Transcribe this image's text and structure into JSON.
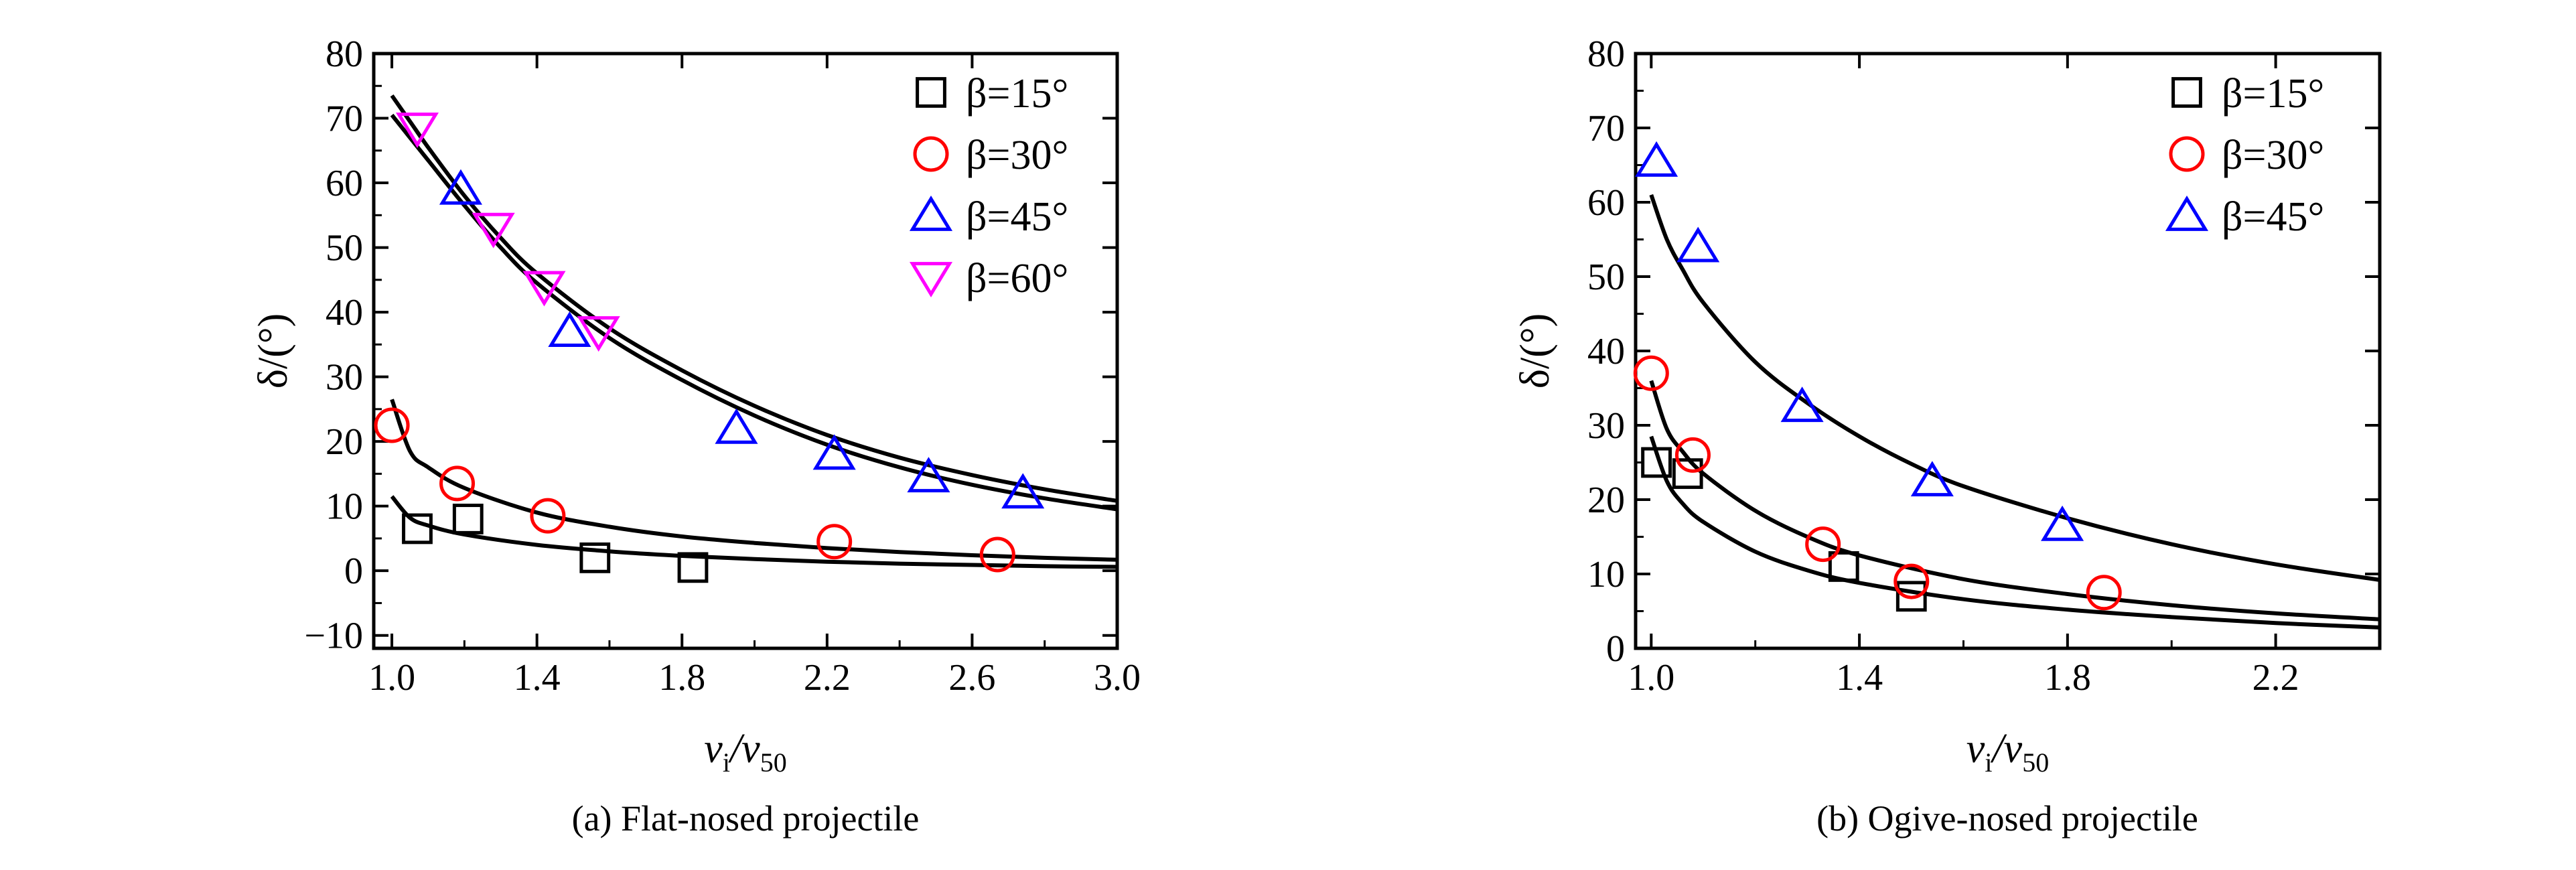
{
  "colors": {
    "axis": "#000000",
    "curve": "#000000",
    "beta15": "#000000",
    "beta30": "#ff0000",
    "beta45": "#0000ff",
    "beta60": "#ff00ff"
  },
  "chart_data": [
    {
      "type": "scatter",
      "caption": "(a) Flat-nosed projectile",
      "xlabel_main": "v",
      "xlabel_sub1": "i",
      "xlabel_mid": "/v",
      "xlabel_sub2": "50",
      "ylabel": "δ/(°)",
      "xlim": [
        0.95,
        3.0
      ],
      "ylim": [
        -12,
        80
      ],
      "xticks": [
        "1.0",
        "1.4",
        "1.8",
        "2.2",
        "2.6",
        "3.0"
      ],
      "yticks": [
        "-10",
        "0",
        "10",
        "20",
        "30",
        "40",
        "50",
        "60",
        "70",
        "80"
      ],
      "grid": false,
      "legend_position": "top-right",
      "series": [
        {
          "name": "β=15°",
          "marker": "square",
          "color": "#000000",
          "x": [
            1.07,
            1.21,
            1.56,
            1.83
          ],
          "y": [
            6.5,
            8,
            2,
            0.5
          ]
        },
        {
          "name": "β=30°",
          "marker": "circle",
          "color": "#ff0000",
          "x": [
            1.0,
            1.18,
            1.43,
            2.22,
            2.67
          ],
          "y": [
            22.5,
            13.5,
            8.5,
            4.5,
            2.5
          ]
        },
        {
          "name": "β=45°",
          "marker": "triangle-up",
          "color": "#0000ff",
          "x": [
            1.19,
            1.49,
            1.95,
            2.22,
            2.48,
            2.74
          ],
          "y": [
            59,
            37,
            22,
            18,
            14.5,
            12
          ]
        },
        {
          "name": "β=60°",
          "marker": "triangle-down",
          "color": "#ff00ff",
          "x": [
            1.07,
            1.28,
            1.42,
            1.57
          ],
          "y": [
            68.5,
            53,
            44,
            37
          ]
        }
      ],
      "fit_curves": [
        {
          "x": [
            1.0,
            1.05,
            1.1,
            1.2,
            1.4,
            1.6,
            1.8,
            2.0,
            2.2,
            2.4,
            2.6,
            2.8,
            3.0
          ],
          "y": [
            11.5,
            8.2,
            7.0,
            5.6,
            4.0,
            3.0,
            2.3,
            1.8,
            1.4,
            1.1,
            0.9,
            0.7,
            0.6
          ]
        },
        {
          "x": [
            1.0,
            1.05,
            1.1,
            1.2,
            1.4,
            1.6,
            1.8,
            2.0,
            2.2,
            2.4,
            2.6,
            2.8,
            3.0
          ],
          "y": [
            26.5,
            18.5,
            16.0,
            12.8,
            9.0,
            6.8,
            5.3,
            4.3,
            3.5,
            2.9,
            2.4,
            2.0,
            1.7
          ]
        },
        {
          "x": [
            1.0,
            1.05,
            1.1,
            1.2,
            1.3,
            1.4,
            1.6,
            1.8,
            2.0,
            2.2,
            2.4,
            2.6,
            2.8,
            3.0
          ],
          "y": [
            73.5,
            69.5,
            65.5,
            58.0,
            51.5,
            46.0,
            37.5,
            31.0,
            25.5,
            21.0,
            17.5,
            14.8,
            12.6,
            10.8
          ]
        },
        {
          "x": [
            1.0,
            1.05,
            1.1,
            1.2,
            1.3,
            1.4,
            1.6,
            1.8,
            2.0,
            2.2,
            2.4,
            2.6,
            2.8,
            3.0
          ],
          "y": [
            70.5,
            67.0,
            63.5,
            56.5,
            50.0,
            44.5,
            36.0,
            29.5,
            24.0,
            19.5,
            16.0,
            13.3,
            11.2,
            9.5
          ]
        }
      ]
    },
    {
      "type": "scatter",
      "caption": "(b) Ogive-nosed projectile",
      "xlabel_main": "v",
      "xlabel_sub1": "i",
      "xlabel_mid": "/v",
      "xlabel_sub2": "50",
      "ylabel": "δ/(°)",
      "xlim": [
        0.97,
        2.4
      ],
      "ylim": [
        0,
        80
      ],
      "xticks": [
        "1.0",
        "1.4",
        "1.8",
        "2.2"
      ],
      "yticks": [
        "0",
        "10",
        "20",
        "30",
        "40",
        "50",
        "60",
        "70",
        "80"
      ],
      "grid": false,
      "legend_position": "top-right",
      "series": [
        {
          "name": "β=15°",
          "marker": "square",
          "color": "#000000",
          "x": [
            1.01,
            1.07,
            1.37,
            1.5
          ],
          "y": [
            25,
            23.5,
            11,
            7
          ]
        },
        {
          "name": "β=30°",
          "marker": "circle",
          "color": "#ff0000",
          "x": [
            1.0,
            1.08,
            1.33,
            1.5,
            1.87
          ],
          "y": [
            37,
            26,
            14,
            9,
            7.5
          ]
        },
        {
          "name": "β=45°",
          "marker": "triangle-up",
          "color": "#0000ff",
          "x": [
            1.01,
            1.09,
            1.29,
            1.54,
            1.79
          ],
          "y": [
            65.5,
            54,
            32.5,
            22.5,
            16.5
          ]
        }
      ],
      "fit_curves": [
        {
          "x": [
            1.0,
            1.03,
            1.06,
            1.1,
            1.2,
            1.3,
            1.4,
            1.6,
            1.8,
            2.0,
            2.2,
            2.4
          ],
          "y": [
            28.5,
            22.5,
            19.5,
            17.0,
            13.0,
            10.5,
            8.8,
            6.6,
            5.2,
            4.2,
            3.4,
            2.8
          ]
        },
        {
          "x": [
            1.0,
            1.03,
            1.06,
            1.1,
            1.2,
            1.3,
            1.4,
            1.6,
            1.8,
            2.0,
            2.2,
            2.4
          ],
          "y": [
            36.0,
            29.5,
            26.5,
            23.5,
            18.5,
            15.0,
            12.5,
            9.3,
            7.3,
            5.8,
            4.7,
            3.9
          ]
        },
        {
          "x": [
            1.0,
            1.03,
            1.06,
            1.1,
            1.2,
            1.3,
            1.4,
            1.5,
            1.6,
            1.8,
            2.0,
            2.2,
            2.4
          ],
          "y": [
            61.0,
            55.0,
            51.0,
            46.5,
            38.5,
            33.0,
            28.5,
            24.8,
            21.8,
            17.5,
            14.0,
            11.3,
            9.2
          ]
        }
      ]
    }
  ]
}
